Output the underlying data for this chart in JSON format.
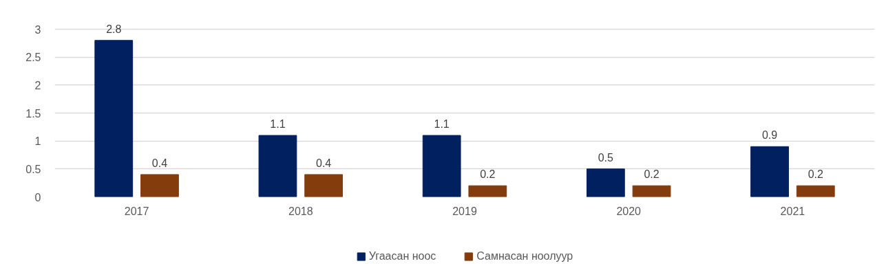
{
  "chart_data": {
    "type": "bar",
    "categories": [
      "2017",
      "2018",
      "2019",
      "2020",
      "2021"
    ],
    "series": [
      {
        "name": "Угаасан ноос",
        "color": "#002060",
        "values": [
          2.8,
          1.1,
          1.1,
          0.5,
          0.9
        ]
      },
      {
        "name": "Самнасан ноолуур",
        "color": "#843c0c",
        "values": [
          0.4,
          0.4,
          0.2,
          0.2,
          0.2
        ]
      }
    ],
    "ylim": [
      0,
      3
    ],
    "yticks": [
      0,
      0.5,
      1,
      1.5,
      2,
      2.5,
      3
    ],
    "grid": "y",
    "legend": "bottom",
    "data_labels": true
  }
}
